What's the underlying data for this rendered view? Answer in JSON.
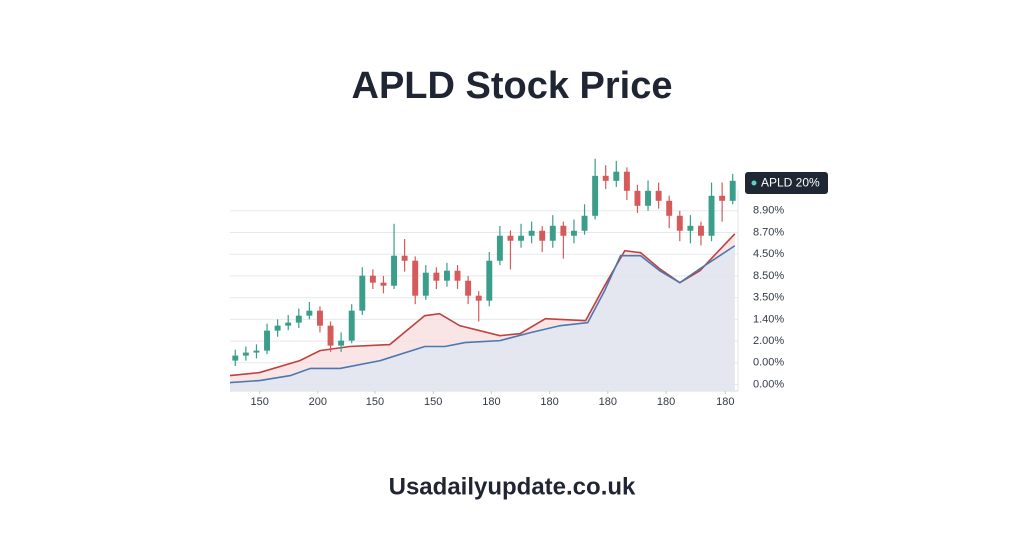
{
  "chart_data": {
    "type": "candlestick",
    "title": "APLD Stock Price",
    "source": "Usadailyupdate.co.uk",
    "xlim": [
      0,
      48
    ],
    "xticks": [
      {
        "value": 2.8,
        "label": "150"
      },
      {
        "value": 8.3,
        "label": "200"
      },
      {
        "value": 13.7,
        "label": "150"
      },
      {
        "value": 19.2,
        "label": "150"
      },
      {
        "value": 24.7,
        "label": "180"
      },
      {
        "value": 30.2,
        "label": "180"
      },
      {
        "value": 35.7,
        "label": "180"
      },
      {
        "value": 41.2,
        "label": "180"
      },
      {
        "value": 46.8,
        "label": "180"
      }
    ],
    "ylim": [
      -0.3,
      10.8
    ],
    "yticks": [
      {
        "value": 8,
        "label": "8.90%"
      },
      {
        "value": 7,
        "label": "8.70%"
      },
      {
        "value": 6,
        "label": "4.50%"
      },
      {
        "value": 5,
        "label": "8.50%"
      },
      {
        "value": 4,
        "label": "3.50%"
      },
      {
        "value": 3,
        "label": "1.40%"
      },
      {
        "value": 2,
        "label": "2.00%"
      },
      {
        "value": 1,
        "label": "0.00%"
      },
      {
        "value": 0,
        "label": "0.00%"
      }
    ],
    "grid": true,
    "series": [
      {
        "name": "APLD 20%",
        "up_color": "#3a9e8a",
        "down_color": "#d65a5a",
        "open": [
          1.1,
          1.33,
          1.47,
          1.56,
          2.48,
          2.71,
          2.85,
          3.17,
          3.4,
          2.71,
          1.79,
          2.02,
          3.4,
          5.01,
          4.69,
          4.55,
          5.93,
          5.7,
          4.09,
          5.15,
          4.78,
          5.24,
          4.78,
          4.09,
          3.86,
          5.7,
          6.85,
          6.62,
          6.85,
          7.08,
          6.62,
          7.31,
          6.85,
          7.08,
          7.77,
          9.61,
          9.38,
          9.8,
          8.92,
          8.23,
          8.92,
          8.46,
          7.77,
          7.08,
          7.31,
          6.85,
          8.69,
          8.46
        ],
        "high": [
          1.6,
          1.75,
          1.85,
          2.8,
          3.0,
          3.2,
          3.5,
          3.8,
          3.6,
          2.9,
          2.4,
          3.7,
          5.4,
          5.3,
          5.0,
          7.4,
          6.7,
          5.9,
          5.5,
          5.4,
          5.6,
          5.5,
          5.0,
          4.3,
          6.1,
          7.3,
          7.1,
          7.4,
          7.5,
          7.3,
          7.8,
          7.5,
          7.6,
          8.3,
          10.4,
          10.1,
          10.3,
          10.0,
          9.2,
          9.4,
          9.3,
          8.7,
          8.0,
          7.8,
          7.5,
          9.3,
          9.3,
          9.7
        ],
        "low": [
          0.85,
          1.1,
          1.2,
          1.4,
          2.2,
          2.5,
          2.6,
          3.0,
          2.4,
          1.5,
          1.5,
          1.9,
          3.2,
          4.4,
          4.2,
          4.4,
          5.2,
          3.7,
          3.9,
          4.4,
          4.5,
          4.4,
          3.7,
          2.9,
          3.6,
          5.5,
          5.3,
          6.3,
          6.5,
          6.1,
          6.3,
          5.8,
          6.5,
          6.9,
          7.6,
          9.0,
          9.1,
          8.5,
          7.9,
          8.0,
          8.1,
          7.2,
          6.6,
          6.5,
          6.4,
          6.6,
          7.5,
          8.3
        ],
        "close": [
          1.33,
          1.47,
          1.56,
          2.48,
          2.71,
          2.85,
          3.17,
          3.4,
          2.71,
          1.79,
          2.02,
          3.4,
          5.01,
          4.69,
          4.55,
          5.93,
          5.7,
          4.09,
          5.15,
          4.78,
          5.24,
          4.78,
          4.09,
          3.86,
          5.7,
          6.85,
          6.62,
          6.85,
          7.08,
          6.62,
          7.31,
          6.85,
          7.08,
          7.77,
          9.61,
          9.38,
          9.8,
          8.92,
          8.23,
          8.92,
          8.46,
          7.77,
          7.08,
          7.31,
          6.85,
          8.69,
          8.46,
          9.38
        ]
      }
    ],
    "lines": [
      {
        "color": "#c0413f",
        "fill": "#f7dcdc",
        "x": [
          0,
          2.8,
          6.6,
          8.5,
          11.3,
          15.1,
          18.4,
          19.8,
          21.7,
          25.5,
          27.4,
          29.8,
          33.6,
          35.4,
          37.3,
          38.8,
          40.6,
          42.5,
          44.4,
          47.7
        ],
        "values": [
          0.41,
          0.55,
          1.1,
          1.56,
          1.75,
          1.84,
          3.17,
          3.26,
          2.71,
          2.25,
          2.34,
          3.03,
          2.94,
          4.55,
          6.16,
          6.07,
          5.33,
          4.69,
          5.24,
          6.94
        ]
      },
      {
        "color": "#4a78b0",
        "fill": "#dce7f3",
        "x": [
          0,
          2.8,
          5.7,
          7.6,
          10.4,
          14.2,
          18.4,
          20.3,
          22.2,
          25.5,
          28.4,
          31.2,
          33.8,
          35.4,
          36.9,
          38.8,
          40.6,
          42.5,
          44.4,
          47.7
        ],
        "values": [
          0.09,
          0.18,
          0.41,
          0.74,
          0.74,
          1.1,
          1.75,
          1.75,
          1.93,
          2.02,
          2.39,
          2.71,
          2.85,
          4.32,
          5.93,
          5.93,
          5.24,
          4.69,
          5.33,
          6.39
        ]
      }
    ]
  }
}
